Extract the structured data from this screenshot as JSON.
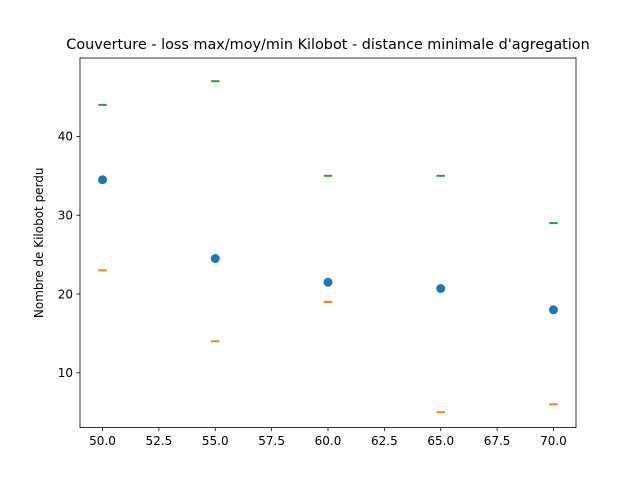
{
  "chart_data": {
    "type": "scatter",
    "title": "Couverture - loss max/moy/min Kilobot - distance minimale d'agregation",
    "xlabel": "",
    "ylabel": "Nombre de Kilobot perdu",
    "xlim": [
      49.0,
      71.0
    ],
    "ylim": [
      3.05,
      49.95
    ],
    "x_ticks": [
      50.0,
      52.5,
      55.0,
      57.5,
      60.0,
      62.5,
      65.0,
      67.5,
      70.0
    ],
    "x_tick_labels": [
      "50.0",
      "52.5",
      "55.0",
      "57.5",
      "60.0",
      "62.5",
      "65.0",
      "67.5",
      "70.0"
    ],
    "y_ticks": [
      10,
      20,
      30,
      40
    ],
    "y_tick_labels": [
      "10",
      "20",
      "30",
      "40"
    ],
    "grid": false,
    "x": [
      50,
      55,
      60,
      65,
      70
    ],
    "series": [
      {
        "role": "mean",
        "marker": "circle",
        "color": "#1f77b4",
        "values": [
          34.5,
          24.5,
          21.5,
          20.7,
          18.0
        ]
      },
      {
        "role": "min",
        "marker": "hline",
        "color": "#ff7f0e",
        "values": [
          23,
          14,
          19,
          5,
          6
        ]
      },
      {
        "role": "max",
        "marker": "hline",
        "color": "#2ca02c",
        "values": [
          44,
          47,
          35,
          35,
          29
        ]
      }
    ]
  }
}
